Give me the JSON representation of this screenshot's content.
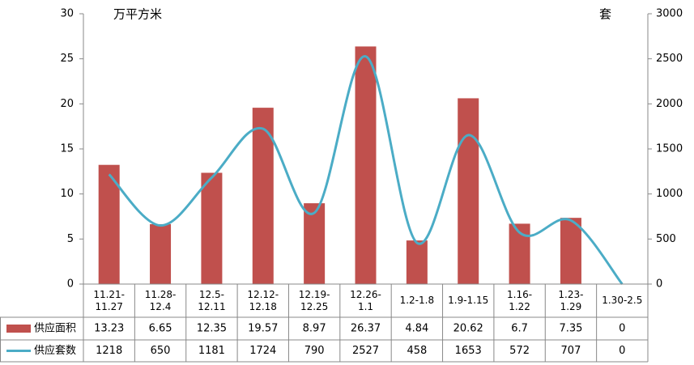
{
  "chart_data": {
    "type": "bar_line_table",
    "y_unit": "万平方米",
    "y2_unit": "套",
    "categories": [
      "11.21-11.27",
      "11.28-12.4",
      "12.5-12.11",
      "12.12-12.18",
      "12.19-12.25",
      "12.26-1.1",
      "1.2-1.8",
      "1.9-1.15",
      "1.16-1.22",
      "1.23-1.29",
      "1.30-2.5"
    ],
    "series": [
      {
        "name": "供应面积",
        "type": "bar",
        "color": "#c0504d",
        "values": [
          13.23,
          6.65,
          12.35,
          19.57,
          8.97,
          26.37,
          4.84,
          20.62,
          6.7,
          7.35,
          0
        ]
      },
      {
        "name": "供应套数",
        "type": "line",
        "axis": "y2",
        "color": "#4bacc6",
        "values": [
          1218,
          650,
          1181,
          1724,
          790,
          2527,
          458,
          1653,
          572,
          707,
          0
        ]
      }
    ],
    "ylim": [
      0,
      30
    ],
    "yticks": [
      0,
      5,
      10,
      15,
      20,
      25,
      30
    ],
    "y2lim": [
      0,
      3000
    ],
    "y2ticks": [
      0,
      500,
      1000,
      1500,
      2000,
      2500,
      3000
    ]
  }
}
